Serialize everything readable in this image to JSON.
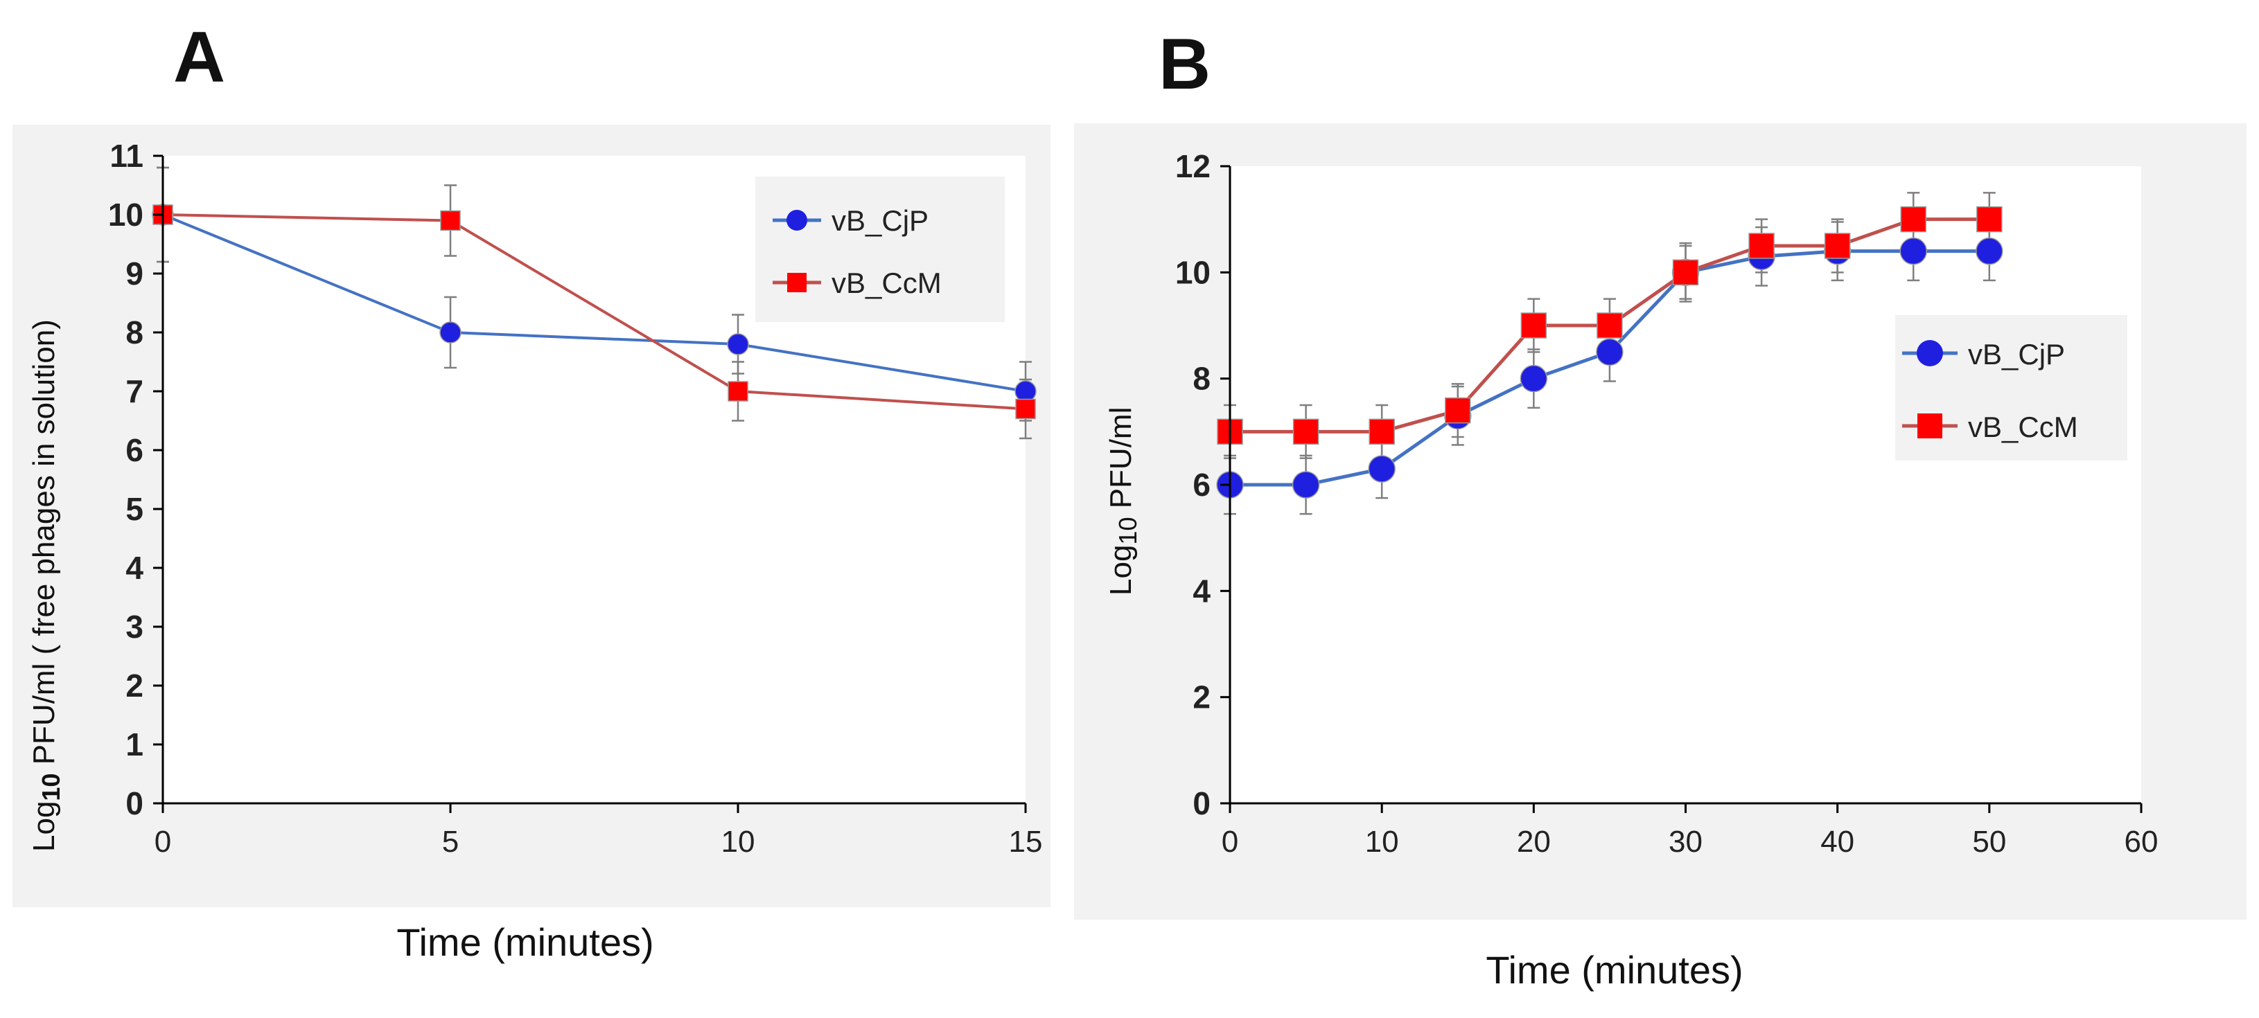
{
  "colors": {
    "series_blue": "#4472C4",
    "series_red": "#C0504D",
    "marker_blue": "#1F1FE0",
    "marker_red": "#FF0000",
    "panel_bg": "#F2F2F2",
    "errorbar": "#7F7F7F"
  },
  "chart_data": [
    {
      "panel": "A",
      "type": "line",
      "title": "",
      "xlabel": "Time (minutes)",
      "ylabel": "Log10 PFU/ml ( free phages in solution)",
      "ylabel_main": "Log",
      "ylabel_sub": "10",
      "ylabel_rest": " PFU/ml ( free phages in solution)",
      "xlim": [
        0,
        15
      ],
      "ylim": [
        0,
        11
      ],
      "xticks": [
        "0",
        "5",
        "10",
        "15"
      ],
      "yticks": [
        "0",
        "1",
        "2",
        "3",
        "4",
        "5",
        "6",
        "7",
        "8",
        "9",
        "10",
        "11"
      ],
      "legend_position": "top-right",
      "series": [
        {
          "name": "vB_CjP",
          "marker": "circle",
          "x": [
            0,
            5,
            10,
            15
          ],
          "y": [
            10,
            8,
            7.8,
            7
          ],
          "err": [
            0.8,
            0.6,
            0.5,
            0.5
          ]
        },
        {
          "name": "vB_CcM",
          "marker": "square",
          "x": [
            0,
            5,
            10,
            15
          ],
          "y": [
            10,
            9.9,
            7,
            6.7
          ],
          "err": [
            0.8,
            0.6,
            0.5,
            0.5
          ]
        }
      ]
    },
    {
      "panel": "B",
      "type": "line",
      "title": "",
      "xlabel": "Time (minutes)",
      "ylabel": "Log10 PFU/ml",
      "ylabel_main": "Log",
      "ylabel_sub": "10",
      "ylabel_rest": " PFU/ml",
      "xlim": [
        0,
        60
      ],
      "ylim": [
        0,
        12
      ],
      "xticks": [
        "0",
        "10",
        "20",
        "30",
        "40",
        "50",
        "60"
      ],
      "yticks": [
        "0",
        "2",
        "4",
        "6",
        "8",
        "10",
        "12"
      ],
      "legend_position": "right",
      "series": [
        {
          "name": "vB_CjP",
          "marker": "circle",
          "x": [
            0,
            5,
            10,
            15,
            20,
            25,
            30,
            35,
            40,
            45,
            50
          ],
          "y": [
            6,
            6,
            6.3,
            7.3,
            8,
            8.5,
            10,
            10.3,
            10.4,
            10.4,
            10.4
          ],
          "err": [
            0.55,
            0.55,
            0.55,
            0.55,
            0.55,
            0.55,
            0.55,
            0.55,
            0.55,
            0.55,
            0.55
          ]
        },
        {
          "name": "vB_CcM",
          "marker": "square",
          "x": [
            0,
            5,
            10,
            15,
            20,
            25,
            30,
            35,
            40,
            45,
            50
          ],
          "y": [
            7,
            7,
            7,
            7.4,
            9,
            9,
            10,
            10.5,
            10.5,
            11,
            11
          ],
          "err": [
            0.5,
            0.5,
            0.5,
            0.5,
            0.5,
            0.5,
            0.5,
            0.5,
            0.5,
            0.5,
            0.5
          ]
        }
      ]
    }
  ]
}
